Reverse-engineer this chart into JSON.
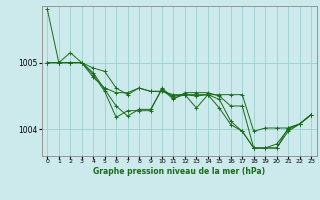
{
  "title": "Graphe pression niveau de la mer (hPa)",
  "background_color": "#cce9eb",
  "line_color": "#1a6b1a",
  "grid_color": "#9dcfcf",
  "ylabel_ticks": [
    1004,
    1005
  ],
  "xlim": [
    -0.5,
    23.5
  ],
  "ylim": [
    1003.6,
    1005.85
  ],
  "series": [
    [
      1005.8,
      1005.0,
      1005.15,
      1005.0,
      1004.85,
      1004.6,
      1004.35,
      1004.2,
      1004.3,
      1004.3,
      1004.6,
      1004.45,
      1004.55,
      1004.55,
      1004.55,
      1004.5,
      1004.35,
      1004.35,
      1003.72,
      1003.72,
      1003.78,
      1004.0,
      1004.08,
      1004.22
    ],
    [
      1005.0,
      1005.0,
      1005.0,
      1005.0,
      1004.78,
      1004.62,
      1004.55,
      1004.55,
      1004.62,
      1004.57,
      1004.57,
      1004.5,
      1004.52,
      1004.5,
      1004.52,
      1004.45,
      1004.12,
      1003.97,
      1003.72,
      1003.72,
      1003.72,
      1003.97,
      1004.08,
      1004.22
    ],
    [
      1005.0,
      1005.0,
      1005.0,
      1005.0,
      1004.82,
      1004.57,
      1004.18,
      1004.28,
      1004.28,
      1004.28,
      1004.62,
      1004.47,
      1004.52,
      1004.52,
      1004.52,
      1004.32,
      1004.07,
      1003.97,
      1003.72,
      1003.72,
      1003.72,
      1004.02,
      1004.08,
      1004.22
    ],
    [
      1005.0,
      1005.0,
      1005.0,
      1005.0,
      1004.92,
      1004.87,
      1004.62,
      1004.52,
      1004.62,
      1004.57,
      1004.57,
      1004.52,
      1004.52,
      1004.32,
      1004.52,
      1004.52,
      1004.52,
      1004.52,
      1003.97,
      1004.02,
      1004.02,
      1004.02,
      1004.08,
      1004.22
    ]
  ],
  "xtick_labels": [
    "0",
    "1",
    "2",
    "3",
    "4",
    "5",
    "6",
    "7",
    "8",
    "9",
    "10",
    "11",
    "12",
    "13",
    "14",
    "15",
    "16",
    "17",
    "18",
    "19",
    "20",
    "21",
    "22",
    "23"
  ],
  "figsize": [
    3.2,
    2.0
  ],
  "dpi": 100
}
